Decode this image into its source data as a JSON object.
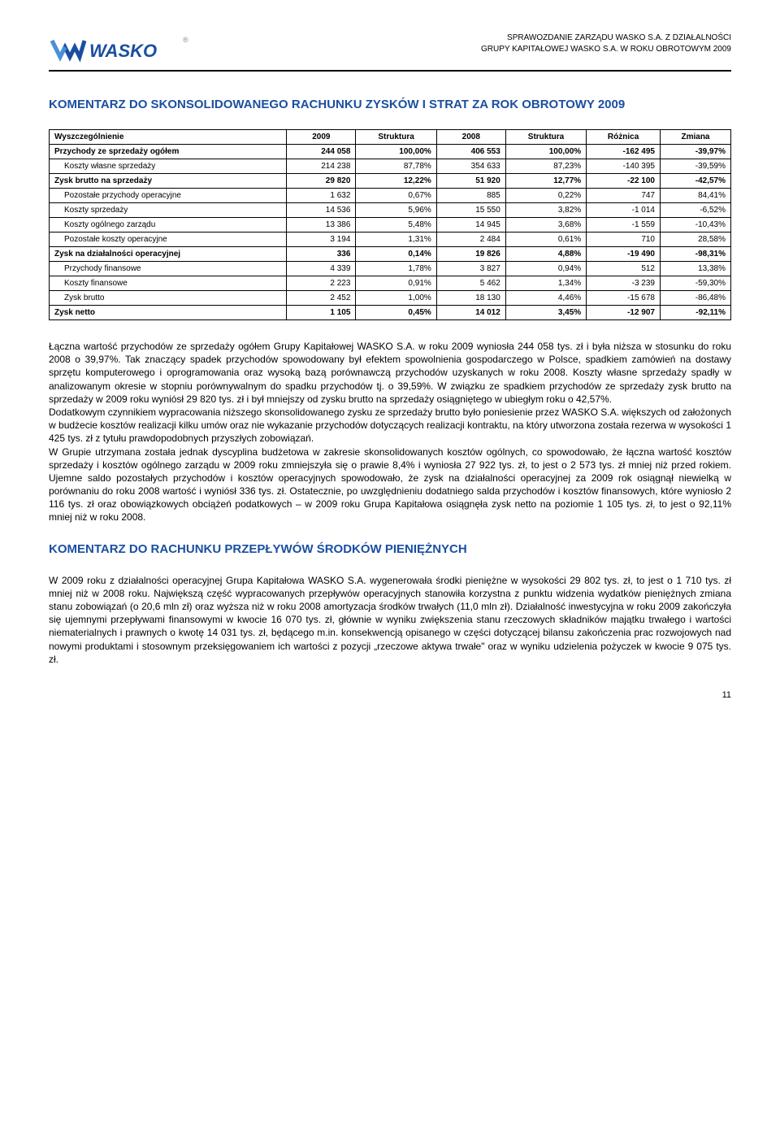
{
  "header": {
    "line1": "SPRAWOZDANIE ZARZĄDU WASKO S.A. Z DZIAŁALNOŚCI",
    "line2": "GRUPY KAPITAŁOWEJ WASKO S.A. W ROKU OBROTOWYM 2009",
    "logo_text": "WASKO",
    "logo_color_primary": "#1a4fa0",
    "logo_color_accent": "#4a90d9"
  },
  "title1": "KOMENTARZ DO SKONSOLIDOWANEGO RACHUNKU ZYSKÓW I STRAT ZA ROK OBROTOWY 2009",
  "title2": "KOMENTARZ DO RACHUNKU PRZEPŁYWÓW ŚRODKÓW PIENIĘŻNYCH",
  "table": {
    "headers": [
      "Wyszczególnienie",
      "2009",
      "Struktura",
      "2008",
      "Struktura",
      "Różnica",
      "Zmiana"
    ],
    "rows": [
      {
        "bold": true,
        "indent": false,
        "cells": [
          "Przychody ze sprzedaży ogółem",
          "244 058",
          "100,00%",
          "406 553",
          "100,00%",
          "-162 495",
          "-39,97%"
        ]
      },
      {
        "bold": false,
        "indent": true,
        "cells": [
          "Koszty własne sprzedaży",
          "214 238",
          "87,78%",
          "354 633",
          "87,23%",
          "-140 395",
          "-39,59%"
        ]
      },
      {
        "bold": true,
        "indent": false,
        "cells": [
          "Zysk brutto na sprzedaży",
          "29 820",
          "12,22%",
          "51 920",
          "12,77%",
          "-22 100",
          "-42,57%"
        ]
      },
      {
        "bold": false,
        "indent": true,
        "cells": [
          "Pozostałe przychody operacyjne",
          "1 632",
          "0,67%",
          "885",
          "0,22%",
          "747",
          "84,41%"
        ]
      },
      {
        "bold": false,
        "indent": true,
        "cells": [
          "Koszty sprzedaży",
          "14 536",
          "5,96%",
          "15 550",
          "3,82%",
          "-1 014",
          "-6,52%"
        ]
      },
      {
        "bold": false,
        "indent": true,
        "cells": [
          "Koszty ogólnego zarządu",
          "13 386",
          "5,48%",
          "14 945",
          "3,68%",
          "-1 559",
          "-10,43%"
        ]
      },
      {
        "bold": false,
        "indent": true,
        "cells": [
          "Pozostałe koszty operacyjne",
          "3 194",
          "1,31%",
          "2 484",
          "0,61%",
          "710",
          "28,58%"
        ]
      },
      {
        "bold": true,
        "indent": false,
        "cells": [
          "Zysk na działalności operacyjnej",
          "336",
          "0,14%",
          "19 826",
          "4,88%",
          "-19 490",
          "-98,31%"
        ]
      },
      {
        "bold": false,
        "indent": true,
        "cells": [
          "Przychody finansowe",
          "4 339",
          "1,78%",
          "3 827",
          "0,94%",
          "512",
          "13,38%"
        ]
      },
      {
        "bold": false,
        "indent": true,
        "cells": [
          "Koszty finansowe",
          "2 223",
          "0,91%",
          "5 462",
          "1,34%",
          "-3 239",
          "-59,30%"
        ]
      },
      {
        "bold": false,
        "indent": true,
        "cells": [
          "Zysk brutto",
          "2 452",
          "1,00%",
          "18 130",
          "4,46%",
          "-15 678",
          "-86,48%"
        ]
      },
      {
        "bold": true,
        "indent": false,
        "cells": [
          "Zysk netto",
          "1 105",
          "0,45%",
          "14 012",
          "3,45%",
          "-12 907",
          "-92,11%"
        ]
      }
    ]
  },
  "para1": "Łączna wartość przychodów ze sprzedaży ogółem Grupy Kapitałowej WASKO S.A. w roku 2009 wyniosła 244 058 tys. zł i była niższa w stosunku do roku 2008 o 39,97%. Tak znaczący spadek przychodów spowodowany był efektem spowolnienia gospodarczego w Polsce, spadkiem zamówień na dostawy sprzętu komputerowego i oprogramowania oraz wysoką bazą porównawczą przychodów uzyskanych w roku 2008. Koszty własne sprzedaży spadły w analizowanym okresie w stopniu porównywalnym do spadku przychodów tj. o 39,59%. W związku ze spadkiem przychodów ze sprzedaży zysk brutto na sprzedaży w 2009 roku wyniósł 29 820 tys. zł i był mniejszy od zysku brutto na sprzedaży osiągniętego w ubiegłym roku o 42,57%.\nDodatkowym czynnikiem wypracowania niższego skonsolidowanego zysku ze sprzedaży brutto było poniesienie przez WASKO S.A. większych od założonych w budżecie kosztów realizacji kilku umów oraz nie wykazanie przychodów dotyczących realizacji kontraktu, na który utworzona została rezerwa w wysokości 1 425 tys. zł z tytułu prawdopodobnych przyszłych zobowiązań.\nW Grupie utrzymana została jednak dyscyplina budżetowa w zakresie skonsolidowanych kosztów ogólnych, co spowodowało, że łączna wartość kosztów sprzedaży i kosztów ogólnego zarządu w 2009 roku zmniejszyła się o prawie 8,4% i wyniosła 27 922 tys. zł, to jest o 2 573 tys. zł mniej niż przed rokiem. Ujemne saldo pozostałych przychodów i kosztów operacyjnych spowodowało, że zysk na działalności operacyjnej za 2009 rok osiągnął niewielką w porównaniu do roku 2008 wartość i wyniósł 336 tys. zł. Ostatecznie, po uwzględnieniu dodatniego salda przychodów i kosztów finansowych, które wyniosło 2 116 tys. zł oraz obowiązkowych obciążeń podatkowych – w 2009 roku Grupa Kapitałowa osiągnęła zysk netto na poziomie 1 105 tys. zł, to jest o 92,11% mniej niż w roku 2008.",
  "para2": "W 2009 roku z działalności operacyjnej Grupa Kapitałowa WASKO S.A. wygenerowała środki pieniężne w wysokości 29 802 tys. zł, to jest o 1 710 tys. zł mniej niż w 2008 roku. Największą część wypracowanych przepływów operacyjnych stanowiła korzystna z punktu widzenia wydatków pieniężnych zmiana stanu zobowiązań (o 20,6 mln zł) oraz wyższa niż w roku 2008 amortyzacja środków trwałych (11,0 mln zł). Działalność inwestycyjna w roku 2009 zakończyła się ujemnymi przepływami finansowymi w kwocie 16 070 tys. zł, głównie w wyniku zwiększenia stanu rzeczowych składników majątku trwałego i wartości niematerialnych i prawnych o kwotę 14 031 tys. zł, będącego m.in. konsekwencją opisanego w części dotyczącej bilansu zakończenia prac rozwojowych nad nowymi produktami i stosownym przeksięgowaniem ich wartości z pozycji „rzeczowe aktywa trwałe\" oraz w wyniku udzielenia pożyczek w kwocie 9 075 tys. zł.",
  "page_num": "11"
}
